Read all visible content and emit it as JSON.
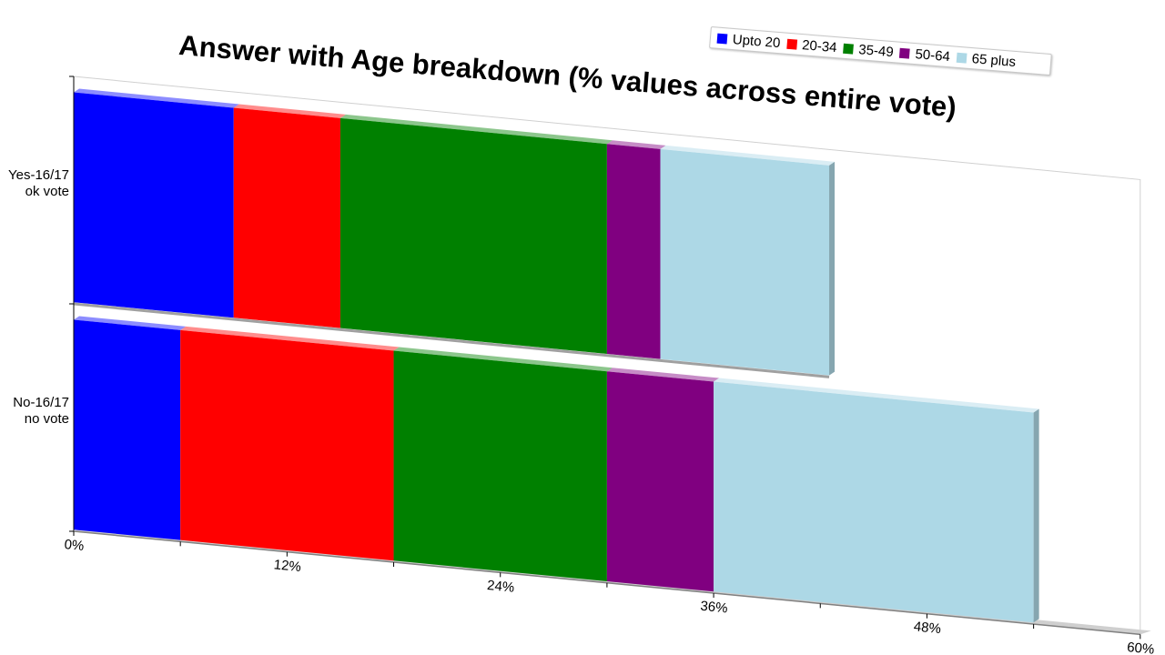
{
  "chart_data": {
    "type": "bar",
    "orientation": "horizontal",
    "stacked": true,
    "title": "Answer with Age breakdown (% values across entire vote)",
    "categories": [
      "Yes-16/17 ok vote",
      "No-16/17 no vote"
    ],
    "category_lines": [
      [
        "Yes-16/17",
        "ok vote"
      ],
      [
        "No-16/17",
        "no vote"
      ]
    ],
    "series": [
      {
        "name": "Upto 20",
        "color": "#0000ff",
        "values": [
          9.0,
          6.0
        ]
      },
      {
        "name": "20-34",
        "color": "#ff0000",
        "values": [
          6.0,
          12.0
        ]
      },
      {
        "name": "35-49",
        "color": "#008000",
        "values": [
          15.0,
          12.0
        ]
      },
      {
        "name": "50-64",
        "color": "#800080",
        "values": [
          3.0,
          6.0
        ]
      },
      {
        "name": "65 plus",
        "color": "#add8e6",
        "values": [
          9.5,
          18.0
        ]
      }
    ],
    "xlim": [
      0,
      60
    ],
    "xticks": [
      0,
      12,
      24,
      36,
      48,
      60
    ],
    "xtick_labels": [
      "0%",
      "12%",
      "24%",
      "36%",
      "48%",
      "60%"
    ],
    "legend_position": "top-right",
    "grid": false
  }
}
